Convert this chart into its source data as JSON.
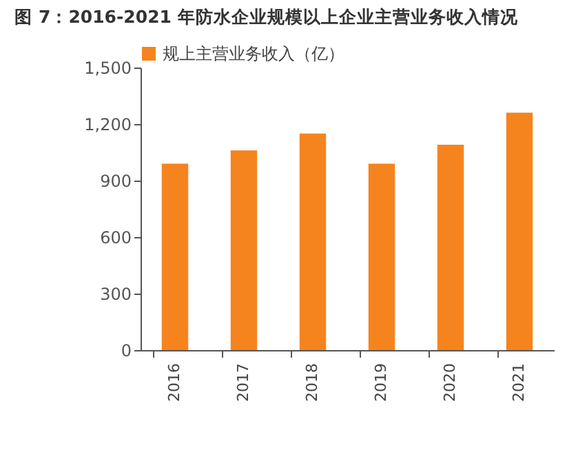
{
  "chart_data": {
    "type": "bar",
    "title": "图 7：2016-2021 年防水企业规模以上企业主营业务收入情况",
    "categories": [
      "2016",
      "2017",
      "2018",
      "2019",
      "2020",
      "2021"
    ],
    "series": [
      {
        "name": "规上主营业务收入（亿）",
        "color": "#f5841f",
        "values": [
          990,
          1060,
          1150,
          990,
          1090,
          1260
        ]
      }
    ],
    "ylim": [
      0,
      1500
    ],
    "yticks": [
      0,
      300,
      600,
      900,
      {
        "value": 1200,
        "label": "1,200"
      },
      {
        "value": 1500,
        "label": "1,500"
      }
    ],
    "legend": "top"
  }
}
